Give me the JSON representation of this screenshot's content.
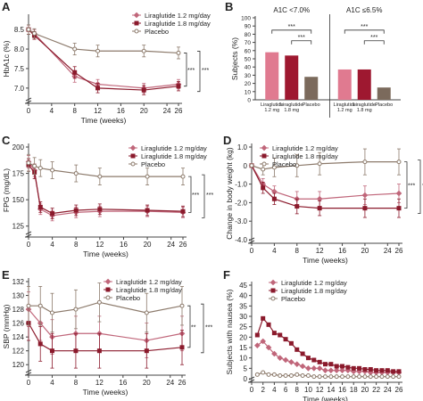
{
  "colors": {
    "lira12": "#c0667a",
    "lira18": "#8b1a2c",
    "placebo": "#8c7a6b",
    "bar_lira12": "#e07a90",
    "bar_lira18": "#9e1830",
    "bar_placebo": "#7b6a5c"
  },
  "chart_data": [
    {
      "panel": "A",
      "type": "line",
      "xlabel": "Time (weeks)",
      "ylabel": "HbA1c (%)",
      "xlim": [
        0,
        26
      ],
      "ylim": [
        6.7,
        8.8
      ],
      "xticks": [
        "0",
        "4",
        "8",
        "12",
        "16",
        "20",
        "24",
        "26"
      ],
      "yticks": [
        "7.0",
        "7.5",
        "8.0",
        "8.5"
      ],
      "legend": [
        "Liraglutide 1.2 mg/day",
        "Liraglutide 1.8 mg/day",
        "Placebo"
      ],
      "x": [
        0,
        1,
        8,
        12,
        20,
        26
      ],
      "series": [
        {
          "name": "Liraglutide 1.2 mg/day",
          "marker": "diamond",
          "values": [
            8.5,
            8.4,
            7.3,
            7.1,
            7.0,
            7.1
          ],
          "err": [
            0.12,
            0.1,
            0.15,
            0.12,
            0.12,
            0.12
          ]
        },
        {
          "name": "Liraglutide 1.8 mg/day",
          "marker": "square",
          "values": [
            8.5,
            8.35,
            7.4,
            7.0,
            6.95,
            7.05
          ],
          "err": [
            0.12,
            0.1,
            0.15,
            0.12,
            0.12,
            0.12
          ]
        },
        {
          "name": "Placebo",
          "marker": "circle",
          "values": [
            8.5,
            8.4,
            8.0,
            7.95,
            7.95,
            7.9
          ],
          "err": [
            0.12,
            0.12,
            0.15,
            0.15,
            0.15,
            0.15
          ]
        }
      ],
      "significance": [
        "***",
        "***"
      ]
    },
    {
      "panel": "B",
      "type": "bar",
      "ylabel": "Subjects (%)",
      "ylim": [
        0,
        100
      ],
      "yticks": [
        "0",
        "10",
        "20",
        "30",
        "40",
        "50",
        "60",
        "70",
        "80",
        "90",
        "100"
      ],
      "groups": [
        {
          "title": "A1C <7.0%",
          "categories": [
            "Liraglutide 1.2 mg",
            "Liraglutide 1.8 mg",
            "Placebo"
          ],
          "values": [
            58,
            54,
            28
          ]
        },
        {
          "title": "A1C ≤6.5%",
          "categories": [
            "Liraglutide 1.2 mg",
            "Liraglutide 1.8 mg",
            "Placebo"
          ],
          "values": [
            37,
            37,
            15
          ]
        }
      ],
      "significance": [
        "***",
        "***",
        "***",
        "***"
      ]
    },
    {
      "panel": "C",
      "type": "line",
      "xlabel": "Time (weeks)",
      "ylabel": "FPG (mg/dL)",
      "xlim": [
        0,
        26
      ],
      "ylim": [
        118,
        200
      ],
      "xticks": [
        "0",
        "4",
        "8",
        "12",
        "16",
        "20",
        "24",
        "26"
      ],
      "yticks": [
        "125",
        "150",
        "175",
        "200"
      ],
      "legend": [
        "Liraglutide 1.2 mg/day",
        "Liraglutide 1.8 mg/day",
        "Placebo"
      ],
      "x": [
        0,
        1,
        2,
        4,
        8,
        12,
        20,
        26
      ],
      "series": [
        {
          "name": "Liraglutide 1.2 mg/day",
          "marker": "diamond",
          "values": [
            186,
            178,
            141,
            135,
            138,
            139,
            139,
            138
          ],
          "err": [
            6,
            6,
            5,
            5,
            5,
            5,
            5,
            5
          ]
        },
        {
          "name": "Liraglutide 1.8 mg/day",
          "marker": "square",
          "values": [
            183,
            176,
            143,
            137,
            140,
            141,
            140,
            139
          ],
          "err": [
            6,
            6,
            5,
            5,
            5,
            5,
            5,
            5
          ]
        },
        {
          "name": "Placebo",
          "marker": "circle",
          "values": [
            185,
            182,
            180,
            178,
            175,
            172,
            172,
            172
          ],
          "err": [
            8,
            8,
            8,
            8,
            8,
            8,
            8,
            8
          ]
        }
      ],
      "significance": [
        "***",
        "***"
      ]
    },
    {
      "panel": "D",
      "type": "line",
      "xlabel": "Time (weeks)",
      "ylabel": "Change in body weight (kg)",
      "xlim": [
        0,
        26
      ],
      "ylim": [
        -4.0,
        1.0
      ],
      "xticks": [
        "0",
        "4",
        "8",
        "12",
        "16",
        "20",
        "24",
        "26"
      ],
      "yticks": [
        "1.0",
        "0",
        "-1.0",
        "-2.0",
        "-3.0",
        "-4.0"
      ],
      "legend": [
        "Liraglutide 1.2 mg/day",
        "Liraglutide 1.8 mg/day",
        "Placebo"
      ],
      "x": [
        0,
        2,
        4,
        8,
        12,
        20,
        26
      ],
      "series": [
        {
          "name": "Liraglutide 1.2 mg/day",
          "marker": "diamond",
          "values": [
            0,
            -1.0,
            -1.4,
            -1.8,
            -1.8,
            -1.6,
            -1.5
          ],
          "err": [
            0,
            0.3,
            0.3,
            0.4,
            0.4,
            0.5,
            0.5
          ]
        },
        {
          "name": "Liraglutide 1.8 mg/day",
          "marker": "square",
          "values": [
            0,
            -1.2,
            -1.8,
            -2.2,
            -2.3,
            -2.3,
            -2.3
          ],
          "err": [
            0,
            0.3,
            0.3,
            0.4,
            0.4,
            0.5,
            0.5
          ]
        },
        {
          "name": "Placebo",
          "marker": "circle",
          "values": [
            0,
            -0.2,
            -0.1,
            0.0,
            0.1,
            0.2,
            0.2
          ],
          "err": [
            0,
            0.3,
            0.5,
            0.6,
            0.6,
            0.7,
            0.7
          ]
        }
      ],
      "significance": [
        "***",
        "***"
      ]
    },
    {
      "panel": "E",
      "type": "line",
      "xlabel": "Time (weeks)",
      "ylabel": "SBP (mmHg)",
      "xlim": [
        0,
        26
      ],
      "ylim": [
        119,
        132
      ],
      "xticks": [
        "0",
        "4",
        "8",
        "12",
        "16",
        "20",
        "24",
        "26"
      ],
      "yticks": [
        "120",
        "122",
        "124",
        "126",
        "128",
        "130",
        "132"
      ],
      "legend": [
        "Liraglutide 1.2 mg/day",
        "Liraglutide 1.8 mg/day",
        "Placebo"
      ],
      "x": [
        0,
        2,
        4,
        8,
        12,
        20,
        26
      ],
      "series": [
        {
          "name": "Liraglutide 1.2 mg/day",
          "marker": "diamond",
          "values": [
            128,
            126,
            124,
            124.5,
            124.5,
            123.5,
            124.5
          ],
          "err": [
            2.5,
            2.5,
            2.5,
            2.5,
            2.5,
            2.5,
            2.5
          ]
        },
        {
          "name": "Liraglutide 1.8 mg/day",
          "marker": "square",
          "values": [
            126,
            123,
            122,
            122,
            122,
            122,
            122.5
          ],
          "err": [
            2.5,
            2.5,
            2.5,
            2.5,
            2.5,
            2.5,
            2.5
          ]
        },
        {
          "name": "Placebo",
          "marker": "circle",
          "values": [
            128.5,
            128.5,
            127.5,
            128,
            129,
            127.5,
            128.5
          ],
          "err": [
            2.8,
            2.8,
            2.8,
            2.8,
            2.8,
            2.8,
            2.8
          ]
        }
      ],
      "significance": [
        "**",
        "***"
      ]
    },
    {
      "panel": "F",
      "type": "line",
      "xlabel": "Time (weeks)",
      "ylabel": "Subjects with nausea (%)",
      "xlim": [
        0,
        26
      ],
      "ylim": [
        0,
        45
      ],
      "xticks": [
        "0",
        "2",
        "4",
        "6",
        "8",
        "10",
        "12",
        "14",
        "16",
        "18",
        "20",
        "22",
        "24",
        "26"
      ],
      "yticks": [
        "0",
        "5",
        "10",
        "15",
        "20",
        "25",
        "30",
        "35",
        "40",
        "45"
      ],
      "legend": [
        "Liraglutide 1.2 mg/day",
        "Liraglutide 1.8 mg/day",
        "Placebo"
      ],
      "x": [
        1,
        2,
        3,
        4,
        5,
        6,
        7,
        8,
        9,
        10,
        11,
        12,
        13,
        14,
        15,
        16,
        17,
        18,
        19,
        20,
        21,
        22,
        23,
        24,
        25,
        26
      ],
      "series": [
        {
          "name": "Liraglutide 1.2 mg/day",
          "marker": "diamond",
          "values": [
            16,
            18,
            15,
            12,
            10,
            9,
            8,
            7,
            6,
            5,
            5,
            5,
            4,
            4,
            4,
            4,
            4,
            3.5,
            3.5,
            3.5,
            3,
            3,
            3,
            3,
            3,
            3
          ]
        },
        {
          "name": "Liraglutide 1.8 mg/day",
          "marker": "square",
          "values": [
            21,
            29,
            26,
            22,
            21,
            19,
            17,
            14,
            12,
            10,
            9,
            8,
            7,
            7,
            6,
            6,
            5.5,
            5,
            5,
            4.5,
            4.5,
            4,
            4,
            4,
            3.5,
            3.5
          ]
        },
        {
          "name": "Placebo",
          "marker": "circle",
          "values": [
            2,
            3,
            2,
            2,
            1.5,
            1.5,
            1.5,
            2,
            1.5,
            1.5,
            1,
            1,
            1,
            1,
            1,
            1,
            1,
            1,
            1,
            1,
            1,
            1,
            1,
            1,
            1,
            1
          ]
        }
      ]
    }
  ]
}
